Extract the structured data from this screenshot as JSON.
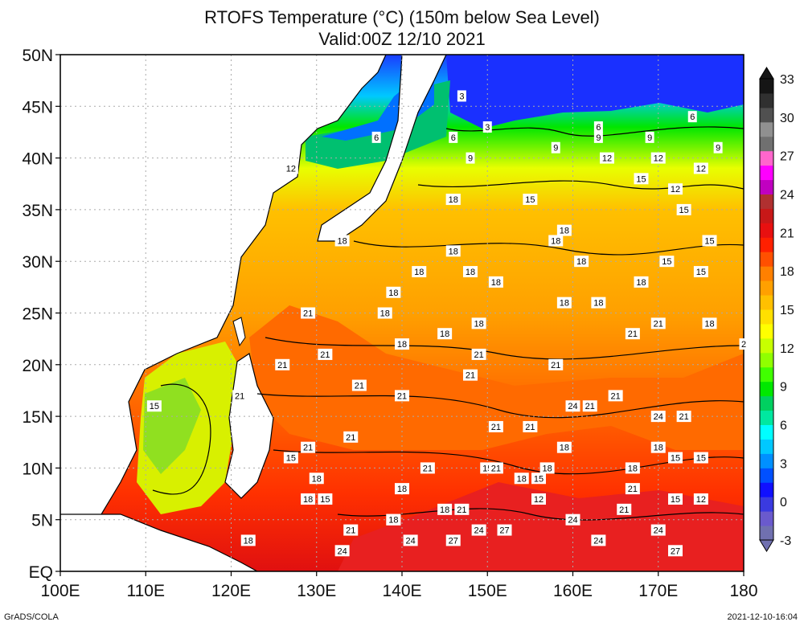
{
  "header": {
    "title_line1": "RTOFS Temperature (°C) (150m below Sea Level)",
    "title_line2": "Valid:00Z 12/10 2021"
  },
  "footer": {
    "credit": "GrADS/COLA",
    "timestamp": "2021-12-10-16:04"
  },
  "map": {
    "lon_range": [
      100,
      180
    ],
    "lat_range": [
      0,
      50
    ],
    "lon_ticks": [
      {
        "value": 100,
        "label": "100E"
      },
      {
        "value": 110,
        "label": "110E"
      },
      {
        "value": 120,
        "label": "120E"
      },
      {
        "value": 130,
        "label": "130E"
      },
      {
        "value": 140,
        "label": "140E"
      },
      {
        "value": 150,
        "label": "150E"
      },
      {
        "value": 160,
        "label": "160E"
      },
      {
        "value": 170,
        "label": "170E"
      },
      {
        "value": 180,
        "label": "180"
      }
    ],
    "lat_ticks": [
      {
        "value": 0,
        "label": "EQ"
      },
      {
        "value": 5,
        "label": "5N"
      },
      {
        "value": 10,
        "label": "10N"
      },
      {
        "value": 15,
        "label": "15N"
      },
      {
        "value": 20,
        "label": "20N"
      },
      {
        "value": 25,
        "label": "25N"
      },
      {
        "value": 30,
        "label": "30N"
      },
      {
        "value": 35,
        "label": "35N"
      },
      {
        "value": 40,
        "label": "40N"
      },
      {
        "value": 45,
        "label": "45N"
      },
      {
        "value": 50,
        "label": "50N"
      }
    ],
    "grid": "dotted",
    "land_color": "#ffffff",
    "contour_labels": [
      {
        "lon": 147,
        "lat": 46,
        "text": "3"
      },
      {
        "lon": 150,
        "lat": 43,
        "text": "3"
      },
      {
        "lon": 137,
        "lat": 42,
        "text": "6"
      },
      {
        "lon": 146,
        "lat": 42,
        "text": "6"
      },
      {
        "lon": 163,
        "lat": 43,
        "text": "6"
      },
      {
        "lon": 174,
        "lat": 44,
        "text": "6"
      },
      {
        "lon": 148,
        "lat": 40,
        "text": "9"
      },
      {
        "lon": 158,
        "lat": 41,
        "text": "9"
      },
      {
        "lon": 163,
        "lat": 42,
        "text": "9"
      },
      {
        "lon": 169,
        "lat": 42,
        "text": "9"
      },
      {
        "lon": 177,
        "lat": 41,
        "text": "9"
      },
      {
        "lon": 127,
        "lat": 39,
        "text": "12"
      },
      {
        "lon": 146,
        "lat": 36,
        "text": "12"
      },
      {
        "lon": 164,
        "lat": 40,
        "text": "12"
      },
      {
        "lon": 170,
        "lat": 40,
        "text": "12"
      },
      {
        "lon": 175,
        "lat": 39,
        "text": "12"
      },
      {
        "lon": 168,
        "lat": 38,
        "text": "15"
      },
      {
        "lon": 172,
        "lat": 37,
        "text": "12"
      },
      {
        "lon": 155,
        "lat": 36,
        "text": "15"
      },
      {
        "lon": 173,
        "lat": 35,
        "text": "15"
      },
      {
        "lon": 176,
        "lat": 32,
        "text": "15"
      },
      {
        "lon": 146,
        "lat": 36,
        "text": "18"
      },
      {
        "lon": 133,
        "lat": 32,
        "text": "18"
      },
      {
        "lon": 159,
        "lat": 33,
        "text": "18"
      },
      {
        "lon": 158,
        "lat": 32,
        "text": "18"
      },
      {
        "lon": 146,
        "lat": 31,
        "text": "18"
      },
      {
        "lon": 161,
        "lat": 30,
        "text": "18"
      },
      {
        "lon": 171,
        "lat": 30,
        "text": "15"
      },
      {
        "lon": 175,
        "lat": 29,
        "text": "15"
      },
      {
        "lon": 142,
        "lat": 29,
        "text": "18"
      },
      {
        "lon": 148,
        "lat": 29,
        "text": "18"
      },
      {
        "lon": 151,
        "lat": 28,
        "text": "18"
      },
      {
        "lon": 168,
        "lat": 28,
        "text": "18"
      },
      {
        "lon": 139,
        "lat": 27,
        "text": "18"
      },
      {
        "lon": 159,
        "lat": 26,
        "text": "18"
      },
      {
        "lon": 163,
        "lat": 26,
        "text": "18"
      },
      {
        "lon": 129,
        "lat": 25,
        "text": "21"
      },
      {
        "lon": 138,
        "lat": 25,
        "text": "18"
      },
      {
        "lon": 176,
        "lat": 24,
        "text": "18"
      },
      {
        "lon": 145,
        "lat": 23,
        "text": "18"
      },
      {
        "lon": 149,
        "lat": 24,
        "text": "18"
      },
      {
        "lon": 167,
        "lat": 23,
        "text": "21"
      },
      {
        "lon": 170,
        "lat": 24,
        "text": "21"
      },
      {
        "lon": 140,
        "lat": 22,
        "text": "18"
      },
      {
        "lon": 180,
        "lat": 22,
        "text": "2"
      },
      {
        "lon": 131,
        "lat": 21,
        "text": "21"
      },
      {
        "lon": 149,
        "lat": 21,
        "text": "21"
      },
      {
        "lon": 158,
        "lat": 20,
        "text": "21"
      },
      {
        "lon": 126,
        "lat": 20,
        "text": "21"
      },
      {
        "lon": 148,
        "lat": 19,
        "text": "21"
      },
      {
        "lon": 135,
        "lat": 18,
        "text": "21"
      },
      {
        "lon": 140,
        "lat": 17,
        "text": "21"
      },
      {
        "lon": 121,
        "lat": 17,
        "text": "21"
      },
      {
        "lon": 111,
        "lat": 16,
        "text": "15"
      },
      {
        "lon": 162,
        "lat": 16,
        "text": "21"
      },
      {
        "lon": 165,
        "lat": 17,
        "text": "21"
      },
      {
        "lon": 160,
        "lat": 16,
        "text": "24"
      },
      {
        "lon": 170,
        "lat": 15,
        "text": "24"
      },
      {
        "lon": 173,
        "lat": 15,
        "text": "21"
      },
      {
        "lon": 151,
        "lat": 14,
        "text": "21"
      },
      {
        "lon": 155,
        "lat": 14,
        "text": "21"
      },
      {
        "lon": 134,
        "lat": 13,
        "text": "21"
      },
      {
        "lon": 159,
        "lat": 12,
        "text": "18"
      },
      {
        "lon": 170,
        "lat": 12,
        "text": "18"
      },
      {
        "lon": 129,
        "lat": 12,
        "text": "21"
      },
      {
        "lon": 172,
        "lat": 11,
        "text": "15"
      },
      {
        "lon": 175,
        "lat": 11,
        "text": "15"
      },
      {
        "lon": 127,
        "lat": 11,
        "text": "15"
      },
      {
        "lon": 150,
        "lat": 10,
        "text": "15"
      },
      {
        "lon": 151,
        "lat": 10,
        "text": "21"
      },
      {
        "lon": 143,
        "lat": 10,
        "text": "21"
      },
      {
        "lon": 130,
        "lat": 9,
        "text": "18"
      },
      {
        "lon": 154,
        "lat": 9,
        "text": "18"
      },
      {
        "lon": 156,
        "lat": 9,
        "text": "15"
      },
      {
        "lon": 157,
        "lat": 10,
        "text": "18"
      },
      {
        "lon": 167,
        "lat": 10,
        "text": "18"
      },
      {
        "lon": 167,
        "lat": 8,
        "text": "21"
      },
      {
        "lon": 140,
        "lat": 8,
        "text": "18"
      },
      {
        "lon": 129,
        "lat": 7,
        "text": "18"
      },
      {
        "lon": 156,
        "lat": 7,
        "text": "12"
      },
      {
        "lon": 131,
        "lat": 7,
        "text": "15"
      },
      {
        "lon": 172,
        "lat": 7,
        "text": "15"
      },
      {
        "lon": 175,
        "lat": 7,
        "text": "12"
      },
      {
        "lon": 145,
        "lat": 6,
        "text": "18"
      },
      {
        "lon": 147,
        "lat": 6,
        "text": "21"
      },
      {
        "lon": 160,
        "lat": 5,
        "text": "24"
      },
      {
        "lon": 166,
        "lat": 6,
        "text": "21"
      },
      {
        "lon": 139,
        "lat": 5,
        "text": "18"
      },
      {
        "lon": 139,
        "lat": 5,
        "text": "18"
      },
      {
        "lon": 134,
        "lat": 4,
        "text": "21"
      },
      {
        "lon": 149,
        "lat": 4,
        "text": "24"
      },
      {
        "lon": 152,
        "lat": 4,
        "text": "27"
      },
      {
        "lon": 170,
        "lat": 4,
        "text": "24"
      },
      {
        "lon": 141,
        "lat": 3,
        "text": "24"
      },
      {
        "lon": 146,
        "lat": 3,
        "text": "27"
      },
      {
        "lon": 163,
        "lat": 3,
        "text": "24"
      },
      {
        "lon": 172,
        "lat": 2,
        "text": "27"
      },
      {
        "lon": 122,
        "lat": 3,
        "text": "18"
      },
      {
        "lon": 133,
        "lat": 2,
        "text": "24"
      }
    ]
  },
  "colorbar": {
    "labels": [
      "-3",
      "0",
      "3",
      "6",
      "9",
      "12",
      "15",
      "18",
      "21",
      "24",
      "27",
      "30",
      "33"
    ],
    "colors": [
      "#7070b0",
      "#6a5acd",
      "#3a3ae0",
      "#1010ff",
      "#0050ff",
      "#0090ff",
      "#00c8ff",
      "#00ffff",
      "#00e8a0",
      "#00d060",
      "#00e800",
      "#40ff00",
      "#90ff00",
      "#c8ff00",
      "#ffff00",
      "#ffe000",
      "#ffc000",
      "#ffa000",
      "#ff8000",
      "#ff5000",
      "#ff2000",
      "#e81010",
      "#c81818",
      "#b03030",
      "#c000c0",
      "#ff00ff",
      "#ff66cc",
      "#707070",
      "#909090",
      "#505050",
      "#303030",
      "#151515"
    ]
  }
}
